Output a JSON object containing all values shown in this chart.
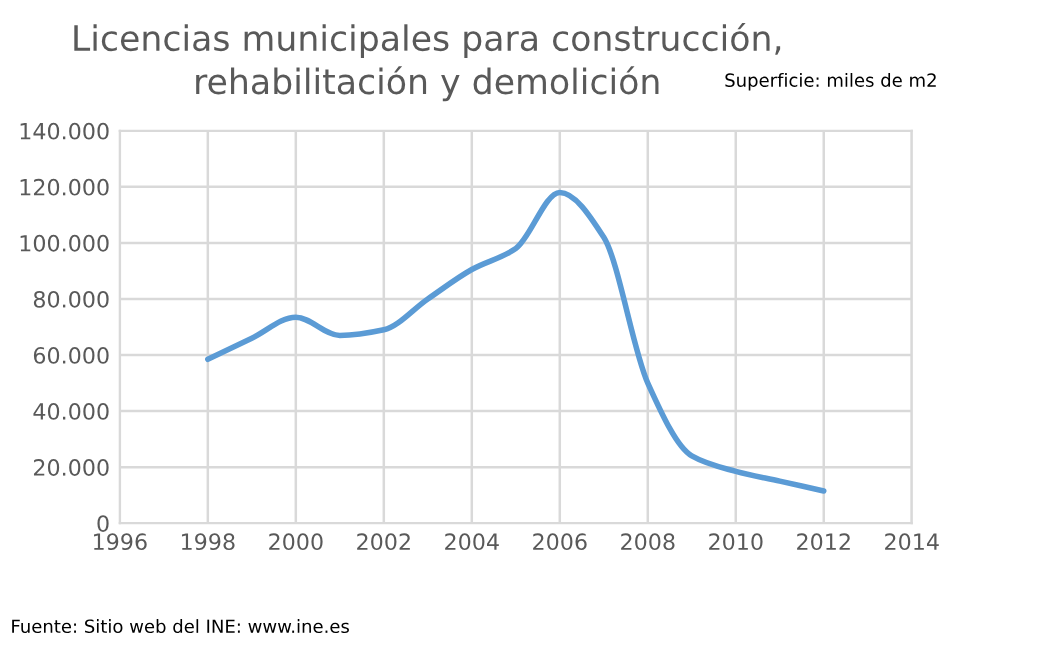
{
  "chart_data": {
    "type": "line",
    "title": "Licencias municipales para construcción,\nrehabilitación y demolición",
    "subtitle": "Superficie: miles de m2",
    "x": [
      1998,
      1999,
      2000,
      2001,
      2002,
      2003,
      2004,
      2005,
      2006,
      2007,
      2008,
      2009,
      2010,
      2011,
      2012
    ],
    "series": [
      {
        "color": "#5b9bd5",
        "values": [
          58500,
          66000,
          73500,
          67000,
          69000,
          80000,
          90500,
          98000,
          118000,
          102000,
          50000,
          24000,
          18500,
          15000,
          11500
        ]
      }
    ],
    "xlim": [
      1996,
      2014
    ],
    "xticks": [
      1996,
      1998,
      2000,
      2002,
      2004,
      2006,
      2008,
      2010,
      2012,
      2014
    ],
    "ylim": [
      0,
      140000
    ],
    "yticks": [
      0,
      {
        "value": 20000,
        "label": "20.000"
      },
      {
        "value": 40000,
        "label": "40.000"
      },
      {
        "value": 60000,
        "label": "60.000"
      },
      {
        "value": 80000,
        "label": "80.000"
      },
      {
        "value": 100000,
        "label": "100.000"
      },
      {
        "value": 120000,
        "label": "120.000"
      },
      {
        "value": 140000,
        "label": "140.000"
      }
    ],
    "grid": true,
    "legend": false,
    "marker": "none",
    "line_style": "solid",
    "annotations": [
      "Fuente: Sitio web del INE: www.ine.es"
    ]
  }
}
